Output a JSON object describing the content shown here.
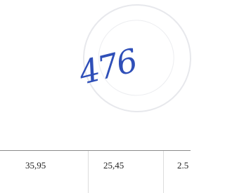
{
  "handwritten_note": "476",
  "table": {
    "rows": [
      [
        "35,95",
        "25,45",
        "2.5"
      ]
    ]
  }
}
